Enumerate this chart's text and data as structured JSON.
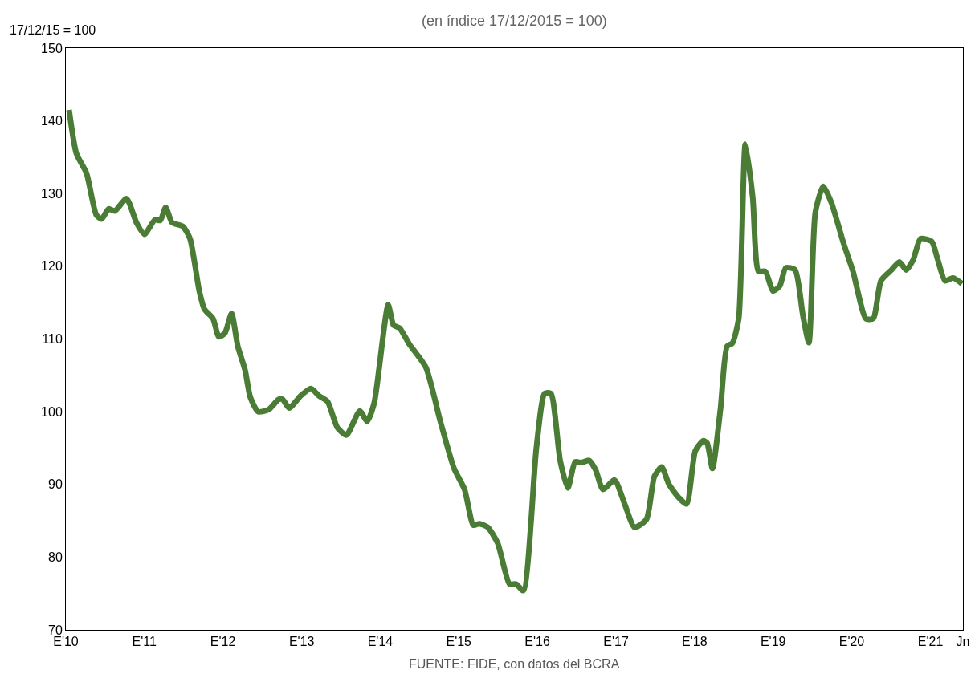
{
  "chart_data": {
    "type": "line",
    "subtitle": "(en índice 17/12/2015 = 100)",
    "ylabel": "17/12/15 = 100",
    "annotations": [
      "FUENTE: FIDE, con datos del BCRA"
    ],
    "x": [
      "2010-01-16",
      "2010-02-19",
      "2010-04-07",
      "2010-05-22",
      "2010-06-16",
      "2010-07-19",
      "2010-08-16",
      "2010-10-10",
      "2010-11-25",
      "2011-01-01",
      "2011-02-19",
      "2011-03-16",
      "2011-04-10",
      "2011-05-10",
      "2011-06-28",
      "2011-08-01",
      "2011-09-13",
      "2011-10-07",
      "2011-11-16",
      "2011-12-13",
      "2012-01-10",
      "2012-02-10",
      "2012-03-10",
      "2012-04-13",
      "2012-05-07",
      "2012-06-13",
      "2012-08-01",
      "2012-09-16",
      "2012-10-04",
      "2012-11-04",
      "2012-12-28",
      "2013-02-13",
      "2013-03-22",
      "2013-05-01",
      "2013-06-16",
      "2013-07-28",
      "2013-09-28",
      "2013-11-01",
      "2013-12-04",
      "2014-02-07",
      "2014-03-04",
      "2014-04-01",
      "2014-05-16",
      "2014-08-01",
      "2014-10-07",
      "2014-12-10",
      "2015-01-28",
      "2015-03-10",
      "2015-04-07",
      "2015-05-16",
      "2015-07-01",
      "2015-08-25",
      "2015-09-25",
      "2015-10-28",
      "2015-12-28",
      "2016-02-04",
      "2016-03-04",
      "2016-04-16",
      "2016-05-22",
      "2016-06-25",
      "2016-07-25",
      "2016-08-28",
      "2016-09-28",
      "2016-11-01",
      "2016-12-25",
      "2017-02-10",
      "2017-03-28",
      "2017-05-22",
      "2017-06-28",
      "2017-08-01",
      "2017-09-04",
      "2017-10-19",
      "2017-11-25",
      "2018-01-04",
      "2018-02-10",
      "2018-02-28",
      "2018-03-25",
      "2018-05-01",
      "2018-06-01",
      "2018-06-25",
      "2018-07-25",
      "2018-08-25",
      "2018-09-28",
      "2018-10-25",
      "2018-11-25",
      "2019-01-01",
      "2019-02-01",
      "2019-03-01",
      "2019-04-13",
      "2019-05-19",
      "2019-06-16",
      "2019-07-16",
      "2019-08-22",
      "2019-09-28",
      "2019-11-25",
      "2020-01-07",
      "2020-03-07",
      "2020-04-10",
      "2020-05-16",
      "2020-07-04",
      "2020-08-10",
      "2020-09-10",
      "2020-10-13",
      "2020-11-16",
      "2021-01-07",
      "2021-02-04",
      "2021-03-10",
      "2021-04-16",
      "2021-05-28"
    ],
    "series": [
      {
        "color": "#4a7c35",
        "values": [
          141.5,
          135.5,
          132.8,
          127.1,
          126.5,
          127.9,
          127.6,
          129.3,
          126,
          124.4,
          126.4,
          126.3,
          128.1,
          126,
          125.5,
          123.8,
          116.6,
          114.1,
          112.8,
          110.3,
          110.8,
          113.5,
          109,
          105.7,
          102,
          100,
          100.3,
          101.7,
          101.7,
          100.5,
          102.2,
          103.2,
          102.2,
          101.4,
          97.8,
          96.8,
          100.1,
          98.7,
          101.2,
          114.7,
          111.9,
          111.5,
          109.3,
          106.1,
          98.7,
          92.2,
          89.3,
          84.4,
          84.6,
          84.1,
          81.9,
          76.3,
          76.3,
          75.4,
          95.1,
          102.5,
          102.5,
          93.3,
          89.5,
          93.1,
          93,
          93.3,
          92,
          89.3,
          90.6,
          87.3,
          84.1,
          85.2,
          91.1,
          92.4,
          90,
          88.2,
          87.3,
          94.6,
          96,
          95.7,
          92.2,
          100.3,
          109,
          109.4,
          112.8,
          136.8,
          129.5,
          119.3,
          119.3,
          116.6,
          117.3,
          119.8,
          119.5,
          113.3,
          109.5,
          127.4,
          131,
          128.8,
          123.1,
          119.3,
          112.8,
          112.8,
          118,
          119.5,
          120.6,
          119.5,
          120.9,
          123.8,
          123.4,
          120.9,
          118,
          118.4,
          117.6
        ]
      }
    ],
    "xlim": [
      "2010-01-01",
      "2021-06-01"
    ],
    "xticks": [
      {
        "value": "2010-01",
        "label": "E'10"
      },
      {
        "value": "2011-01",
        "label": "E'11"
      },
      {
        "value": "2012-01",
        "label": "E'12"
      },
      {
        "value": "2013-01",
        "label": "E'13"
      },
      {
        "value": "2014-01",
        "label": "E'14"
      },
      {
        "value": "2015-01",
        "label": "E'15"
      },
      {
        "value": "2016-01",
        "label": "E'16"
      },
      {
        "value": "2017-01",
        "label": "E'17"
      },
      {
        "value": "2018-01",
        "label": "E'18"
      },
      {
        "value": "2019-01",
        "label": "E'19"
      },
      {
        "value": "2020-01",
        "label": "E'20"
      },
      {
        "value": "2021-01",
        "label": "E'21"
      },
      {
        "value": "2021-06",
        "label": "Jn"
      }
    ],
    "ylim": [
      70,
      150
    ],
    "yticks": [
      70,
      80,
      90,
      100,
      110,
      120,
      130,
      140,
      150
    ],
    "marker": "none",
    "line_style": "solid"
  }
}
